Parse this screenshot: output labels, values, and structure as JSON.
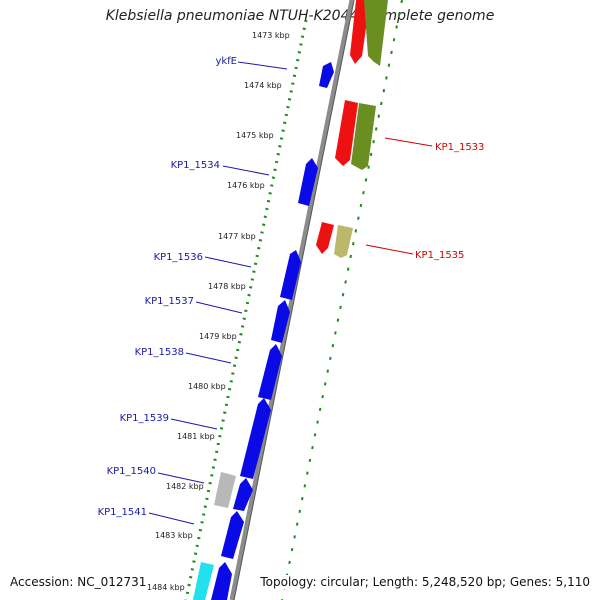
{
  "title": "Klebsiella pneumoniae NTUH-K2044, complete genome",
  "footer": {
    "accession": "Accession: NC_012731",
    "summary": "Topology: circular; Length: 5,248,520 bp; Genes: 5,110"
  },
  "scale_labels": [
    "1473 kbp",
    "1474 kbp",
    "1475 kbp",
    "1476 kbp",
    "1477 kbp",
    "1478 kbp",
    "1479 kbp",
    "1480 kbp",
    "1481 kbp",
    "1482 kbp",
    "1483 kbp",
    "1484 kbp"
  ],
  "gene_labels_forward": [
    "ykfE",
    "KP1_1534",
    "KP1_1536",
    "KP1_1537",
    "KP1_1538",
    "KP1_1539",
    "KP1_1540",
    "KP1_1541"
  ],
  "gene_labels_reverse": [
    "KP1_1533",
    "KP1_1535"
  ],
  "colors": {
    "forward_cds": "#0a0ae6",
    "reverse_cds": "#ee1111",
    "olive_feature": "#6b8e23",
    "khaki_feature": "#bdb76b",
    "grey_feature": "#b8b8b8",
    "cyan_feature": "#22e0ee",
    "backbone": "#8c8c8c",
    "ticks": "#1e8b1e"
  }
}
